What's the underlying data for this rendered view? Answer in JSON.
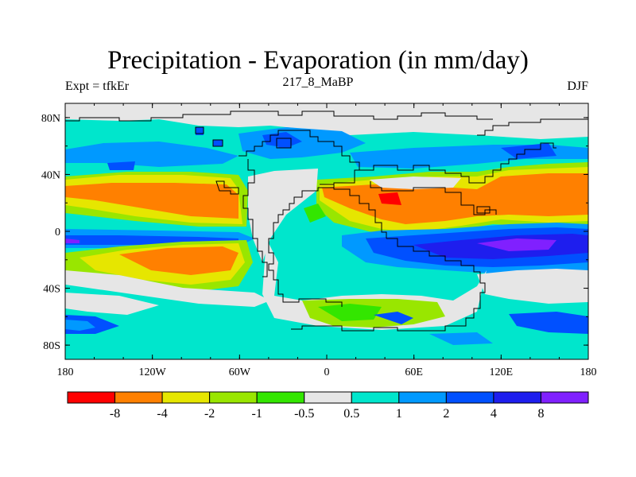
{
  "title": "Precipitation - Evaporation (in mm/day)",
  "subtitle": "217_8_MaBP",
  "left_string": "Expt = tfkEr",
  "right_string": "DJF",
  "map": {
    "lon_ticks": [
      "180",
      "120W",
      "60W",
      "0",
      "60E",
      "120E",
      "180"
    ],
    "lat_ticks": [
      "80N",
      "40N",
      "0",
      "40S",
      "80S"
    ]
  },
  "colorbar": {
    "colors": [
      "#ff0000",
      "#ff8000",
      "#e6e600",
      "#99e600",
      "#33e600",
      "#e6e6e6",
      "#00e6cc",
      "#0099ff",
      "#0050ff",
      "#1e1eee",
      "#8020ff"
    ],
    "labels": [
      "-8",
      "-4",
      "-2",
      "-1",
      "-0.5",
      "0.5",
      "1",
      "2",
      "4",
      "8"
    ]
  }
}
